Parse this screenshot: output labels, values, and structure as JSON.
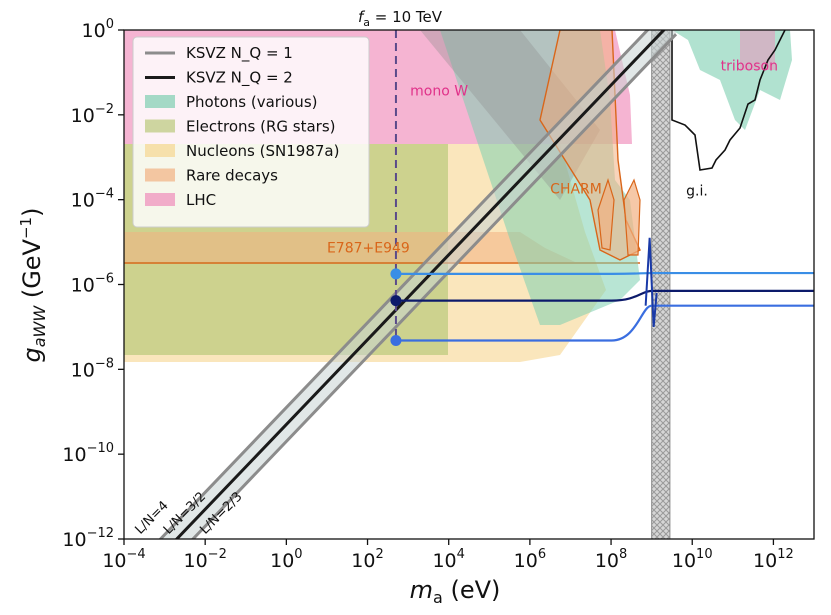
{
  "chart_data": {
    "type": "area",
    "title": "",
    "xlabel": "m_a (eV)",
    "ylabel": "g_aWW (GeV^-1)",
    "xscale": "log",
    "yscale": "log",
    "xlim_exp": [
      -4,
      13
    ],
    "ylim_exp": [
      -12,
      0
    ],
    "x_tick_exponents": [
      -4,
      -2,
      0,
      2,
      4,
      6,
      8,
      10,
      12
    ],
    "y_tick_exponents": [
      -12,
      -10,
      -8,
      -6,
      -4,
      -2,
      0
    ],
    "tick_base": "10",
    "top_annotation": "f_a = 10 TeV",
    "fa_line_log_ma": 2.7,
    "legend": [
      {
        "label": "KSVZ N_Q = 1",
        "kind": "line",
        "color": "#8c8c8c"
      },
      {
        "label": "KSVZ N_Q = 2",
        "kind": "line",
        "color": "#1a1a1a"
      },
      {
        "label": "Photons (various)",
        "kind": "patch",
        "color": "#7dcfb0"
      },
      {
        "label": "Electrons (RG stars)",
        "kind": "patch",
        "color": "#b9c97a"
      },
      {
        "label": "Nucleons (SN1987a)",
        "kind": "patch",
        "color": "#f6d690"
      },
      {
        "label": "Rare decays",
        "kind": "patch",
        "color": "#f2b182"
      },
      {
        "label": "LHC",
        "kind": "patch",
        "color": "#f08cba"
      }
    ],
    "annotations": [
      {
        "text": "mono W",
        "log_x": 3.05,
        "log_y": -1.55,
        "color": "#e0328a"
      },
      {
        "text": "triboson",
        "log_x": 10.7,
        "log_y": -0.95,
        "color": "#e0328a"
      },
      {
        "text": "CHARM",
        "log_x": 6.5,
        "log_y": -3.85,
        "color": "#d9661a"
      },
      {
        "text": "E787+E949",
        "log_x": 1.0,
        "log_y": -5.25,
        "color": "#d9661a"
      },
      {
        "text": "g.i.",
        "log_x": 9.85,
        "log_y": -3.9,
        "color": "#111111"
      }
    ],
    "band_labels": [
      {
        "text": "L/N=4",
        "log_x": -3.6,
        "log_y": -11.9
      },
      {
        "text": "L/N=3/2",
        "log_x": -2.9,
        "log_y": -11.9
      },
      {
        "text": "L/N=2/3",
        "log_x": -2.0,
        "log_y": -11.9
      }
    ],
    "ksvz_lines": [
      {
        "name": "KSVZ N_Q=1 (L/N=4)",
        "points_log": [
          [
            -4,
            -12.9
          ],
          [
            8.0,
            -0.9
          ],
          [
            9.6,
            0.7
          ]
        ]
      },
      {
        "name": "KSVZ N_Q=1 (L/N=2/3)",
        "points_log": [
          [
            -4,
            -13.7
          ],
          [
            8.0,
            -1.7
          ],
          [
            9.6,
            -0.1
          ]
        ]
      },
      {
        "name": "KSVZ N_Q=2",
        "points_log": [
          [
            -4,
            -13.3
          ],
          [
            8.0,
            -1.3
          ],
          [
            9.4,
            0.1
          ]
        ]
      }
    ],
    "benchmark_points": [
      {
        "log_x": 2.7,
        "log_y": -5.75,
        "color": "#3a8ee6"
      },
      {
        "log_x": 2.7,
        "log_y": -6.38,
        "color": "#0c1a6b"
      },
      {
        "log_x": 2.7,
        "log_y": -7.32,
        "color": "#3a6ee0"
      }
    ],
    "benchmark_curves": [
      {
        "color": "#3a8ee6",
        "y_left": -5.75,
        "y_right": -5.73
      },
      {
        "color": "#0c1a6b",
        "y_left": -6.38,
        "y_right": -6.15
      },
      {
        "color": "#3a6ee0",
        "y_left": -7.32,
        "y_right": -6.5
      }
    ],
    "hatched_region_log_x": [
      9.0,
      9.45
    ]
  }
}
